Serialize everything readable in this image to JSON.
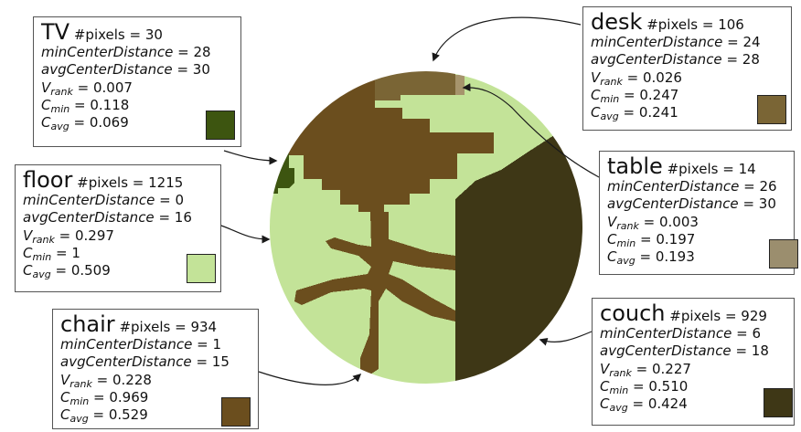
{
  "labels": {
    "pixels": "#pixels",
    "min_center": "minCenterDistance",
    "avg_center": "avgCenterDistance",
    "v": "V",
    "rank": "rank",
    "c": "C",
    "min": "min",
    "avg": "avg"
  },
  "regions": [
    {
      "id": "tv",
      "name": "TV",
      "pixels": "30",
      "min_center_distance": "28",
      "avg_center_distance": "30",
      "v_rank": "0.007",
      "c_min": "0.118",
      "c_avg": "0.069",
      "color": "#3d5510"
    },
    {
      "id": "desk",
      "name": "desk",
      "pixels": "106",
      "min_center_distance": "24",
      "avg_center_distance": "28",
      "v_rank": "0.026",
      "c_min": "0.247",
      "c_avg": "0.241",
      "color": "#7a6535"
    },
    {
      "id": "floor",
      "name": "floor",
      "pixels": "1215",
      "min_center_distance": "0",
      "avg_center_distance": "16",
      "v_rank": "0.297",
      "c_min": "1",
      "c_avg": "0.509",
      "color": "#c3e398"
    },
    {
      "id": "table",
      "name": "table",
      "pixels": "14",
      "min_center_distance": "26",
      "avg_center_distance": "30",
      "v_rank": "0.003",
      "c_min": "0.197",
      "c_avg": "0.193",
      "color": "#9b8e6e"
    },
    {
      "id": "chair",
      "name": "chair",
      "pixels": "934",
      "min_center_distance": "1",
      "avg_center_distance": "15",
      "v_rank": "0.228",
      "c_min": "0.969",
      "c_avg": "0.529",
      "color": "#6b4e1e"
    },
    {
      "id": "couch",
      "name": "couch",
      "pixels": "929",
      "min_center_distance": "6",
      "avg_center_distance": "18",
      "v_rank": "0.227",
      "c_min": "0.510",
      "c_avg": "0.424",
      "color": "#3e3716"
    }
  ],
  "colors": {
    "connector": "#1a1a1a",
    "outline": "#555555",
    "desk_light": "#a6946c"
  }
}
